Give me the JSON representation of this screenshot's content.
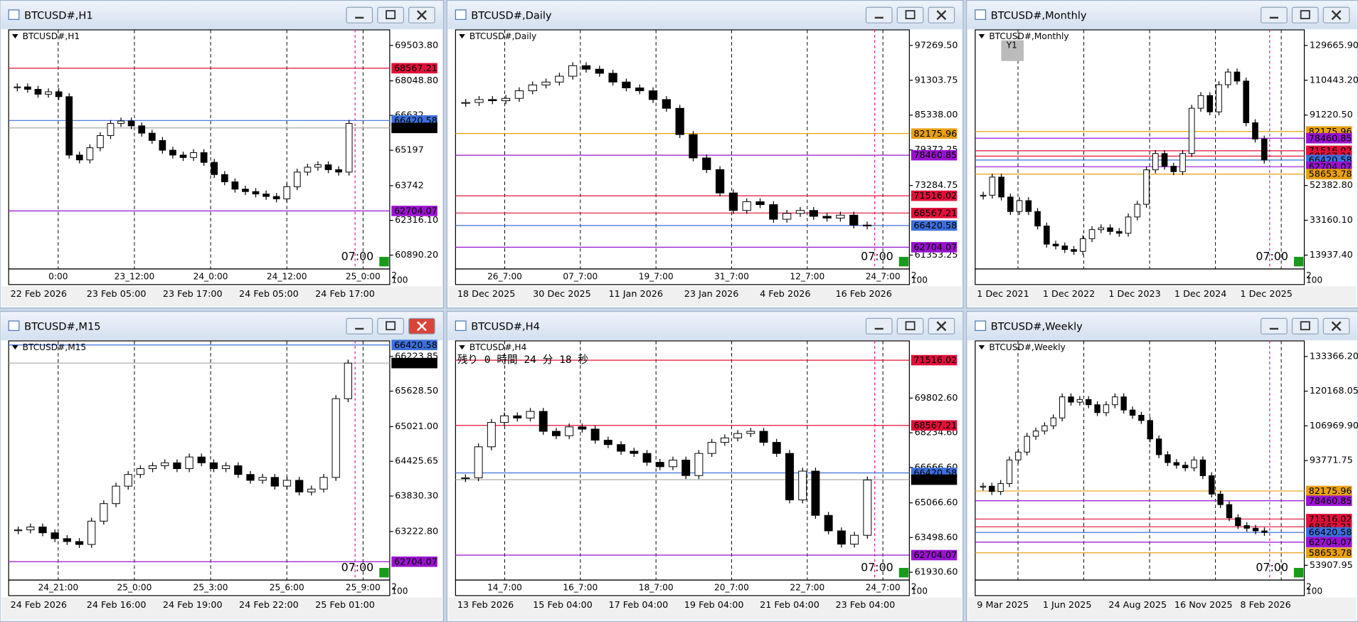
{
  "windows": [
    {
      "title": "BTCUSD#,H1",
      "label": "BTCUSD#,H1",
      "ylim": [
        60320,
        70145
      ],
      "price_ticks": [
        {
          "value": 69503.8,
          "label": "69503.80"
        },
        {
          "value": 68048.8,
          "label": "68048.80"
        },
        66632,
        65197,
        63742,
        {
          "value": 62316.1,
          "label": "62316.10"
        },
        {
          "value": 60890.2,
          "label": "60890.20"
        }
      ],
      "levels": [
        {
          "value": 68567.21,
          "color": "#e0103a"
        },
        {
          "value": 66420.58,
          "color": "#3d6fdc"
        },
        {
          "value": 66114.1,
          "label": "66114.10",
          "color": "#000000"
        },
        {
          "value": 62704.07,
          "color": "#9a12d0"
        }
      ],
      "closes": [
        67800,
        67700,
        67500,
        67600,
        67400,
        65000,
        64800,
        65300,
        65800,
        66300,
        66400,
        66200,
        65900,
        65600,
        65200,
        65000,
        64900,
        65100,
        64700,
        64200,
        63900,
        63600,
        63500,
        63400,
        63300,
        63200,
        63700,
        64300,
        64500,
        64600,
        64400,
        64300,
        66300
      ],
      "time_labels": [
        "0:00",
        "23_12:00",
        "24_0:00",
        "24_12:00",
        "25_0:00"
      ],
      "date_labels": [
        "22 Feb 2026",
        "23 Feb 05:00",
        "23 Feb 17:00",
        "24 Feb 05:00",
        "24 Feb 17:00"
      ],
      "session_label": "07:00",
      "scale_labels": [
        "2",
        "100"
      ]
    },
    {
      "title": "BTCUSD#,Daily",
      "label": "BTCUSD#,Daily",
      "ylim": [
        58979,
        99941
      ],
      "price_ticks": [
        {
          "value": 97269.5,
          "label": "97269.50"
        },
        91303.75,
        {
          "value": 85338,
          "label": "85338.00"
        },
        79372.25,
        73284.75,
        61353.25
      ],
      "levels": [
        {
          "value": 82175.96,
          "color": "#e8a010"
        },
        {
          "value": 78460.85,
          "color": "#9a12d0"
        },
        {
          "value": 71516.02,
          "color": "#e0103a"
        },
        {
          "value": 68567.21,
          "color": "#e0103a"
        },
        {
          "value": 66420.58,
          "color": "#3d6fdc"
        },
        {
          "value": 62704.07,
          "color": "#9a12d0"
        }
      ],
      "closes": [
        87500,
        88000,
        87800,
        88200,
        89500,
        90500,
        91000,
        92000,
        93800,
        93200,
        92500,
        91000,
        90000,
        89500,
        88000,
        86500,
        82000,
        78000,
        76000,
        72000,
        69000,
        70500,
        70000,
        67500,
        68500,
        69000,
        68000,
        67700,
        68200,
        66500,
        66400
      ],
      "time_labels": [
        "26_7:00",
        "07_7:00",
        "19_7:00",
        "31_7:00",
        "12_7:00",
        "24_7:00"
      ],
      "date_labels": [
        "18 Dec 2025",
        "30 Dec 2025",
        "11 Jan 2026",
        "23 Jan 2026",
        "4 Feb 2026",
        "16 Feb 2026"
      ],
      "session_label": "07:00",
      "scale_labels": [
        "2",
        "100"
      ]
    },
    {
      "title": "BTCUSD#,Monthly",
      "label": "BTCUSD#,Monthly",
      "badge": "Y1",
      "ylim": [
        6289,
        138273
      ],
      "price_ticks": [
        {
          "value": 129665.9,
          "label": "129665.90"
        },
        {
          "value": 110443.2,
          "label": "110443.20"
        },
        {
          "value": 91220.5,
          "label": "91220.50"
        },
        {
          "value": 52382.8,
          "label": "52382.80"
        },
        {
          "value": 33160.1,
          "label": "33160.10"
        },
        {
          "value": 13937.4,
          "label": "13937.40"
        }
      ],
      "levels": [
        {
          "value": 82175.96,
          "color": "#e8a010"
        },
        {
          "value": 78460.85,
          "color": "#9a12d0"
        },
        {
          "value": 71516.02,
          "color": "#e0103a"
        },
        {
          "value": 68567.21,
          "color": "#e0103a"
        },
        {
          "value": 66420.58,
          "color": "#3d6fdc"
        },
        {
          "value": 62704.07,
          "color": "#9a12d0"
        },
        {
          "value": 58653.78,
          "color": "#e8a010"
        }
      ],
      "closes": [
        47000,
        57000,
        46000,
        38000,
        44000,
        38000,
        30000,
        20000,
        19000,
        17000,
        16000,
        23000,
        28000,
        29000,
        27000,
        26000,
        35000,
        42000,
        61000,
        70000,
        63000,
        60000,
        70000,
        95000,
        102000,
        93000,
        108000,
        115000,
        110000,
        87000,
        78000,
        66400
      ],
      "time_labels": [],
      "date_labels": [
        "1 Dec 2021",
        "1 Dec 2022",
        "1 Dec 2023",
        "1 Dec 2024",
        "1 Dec 2025"
      ],
      "session_label": "07:00",
      "scale_labels": [
        "2",
        "100"
      ]
    },
    {
      "title": "BTCUSD#,M15",
      "label": "BTCUSD#,M15",
      "ylim": [
        62390,
        66491
      ],
      "price_ticks": [
        66223.85,
        {
          "value": 65628.5,
          "label": "65628.50"
        },
        {
          "value": 65021,
          "label": "65021.00"
        },
        64425.65,
        {
          "value": 63830.3,
          "label": "63830.30"
        },
        {
          "value": 63222.8,
          "label": "63222.80"
        }
      ],
      "levels": [
        {
          "value": 66420.58,
          "color": "#3d6fdc"
        },
        {
          "value": 66110.5,
          "label": "66110.50",
          "color": "#000000"
        },
        {
          "value": 62704.07,
          "color": "#9a12d0"
        }
      ],
      "closes": [
        63250,
        63300,
        63200,
        63100,
        63050,
        63000,
        63400,
        63700,
        64000,
        64200,
        64300,
        64350,
        64400,
        64300,
        64500,
        64400,
        64300,
        64350,
        64200,
        64100,
        64150,
        64000,
        64100,
        63900,
        63950,
        64150,
        65500,
        66110
      ],
      "time_labels": [
        "24_21:00",
        "25_0:00",
        "25_3:00",
        "25_6:00",
        "25_9:00"
      ],
      "date_labels": [
        "24 Feb 2026",
        "24 Feb 16:00",
        "24 Feb 19:00",
        "24 Feb 22:00",
        "25 Feb 01:00"
      ],
      "session_label": "07:00",
      "scale_labels": [
        "2",
        "100"
      ]
    },
    {
      "title": "BTCUSD#,H4",
      "label": "BTCUSD#,H4",
      "countdown": "残り 0 時間 24 分 18 秒",
      "ylim": [
        61578,
        72387
      ],
      "price_ticks": [
        {
          "value": 69802.6,
          "label": "69802.60"
        },
        {
          "value": 68234.6,
          "label": "68234.60"
        },
        {
          "value": 66666.6,
          "label": "66666.60"
        },
        {
          "value": 65066.6,
          "label": "65066.60"
        },
        {
          "value": 63498.6,
          "label": "63498.60"
        },
        {
          "value": 61930.6,
          "label": "61930.60"
        }
      ],
      "levels": [
        {
          "value": 71516.02,
          "color": "#e0103a"
        },
        {
          "value": 68567.21,
          "color": "#e0103a"
        },
        {
          "value": 66420.58,
          "color": "#3d6fdc"
        },
        {
          "value": 66114.1,
          "label": "66114.10",
          "color": "#000000"
        },
        {
          "value": 62704.07,
          "color": "#9a12d0"
        }
      ],
      "closes": [
        66200,
        67600,
        68700,
        69000,
        68900,
        69200,
        68300,
        68100,
        68500,
        68400,
        67900,
        67700,
        67400,
        67300,
        66900,
        66700,
        67000,
        66300,
        67300,
        67800,
        68000,
        68200,
        68300,
        67800,
        67300,
        65200,
        66500,
        64500,
        63800,
        63200,
        63600,
        66100
      ],
      "time_labels": [
        "14_7:00",
        "16_7:00",
        "18_7:00",
        "20_7:00",
        "22_7:00",
        "24_7:00"
      ],
      "date_labels": [
        "13 Feb 2026",
        "15 Feb 04:00",
        "17 Feb 04:00",
        "19 Feb 04:00",
        "21 Feb 04:00",
        "23 Feb 04:00"
      ],
      "session_label": "07:00",
      "scale_labels": [
        "2",
        "100"
      ]
    },
    {
      "title": "BTCUSD#,Weekly",
      "label": "BTCUSD#,Weekly",
      "ylim": [
        48298,
        139306
      ],
      "price_ticks": [
        {
          "value": 133366.2,
          "label": "133366.20"
        },
        120168.05,
        {
          "value": 106969.9,
          "label": "106969.90"
        },
        93771.75,
        53907.95
      ],
      "levels": [
        {
          "value": 82175.96,
          "color": "#e8a010"
        },
        {
          "value": 78460.85,
          "color": "#9a12d0"
        },
        {
          "value": 71516.02,
          "color": "#e0103a"
        },
        {
          "value": 68567.21,
          "color": "#e0103a"
        },
        {
          "value": 66420.58,
          "color": "#3d6fdc"
        },
        {
          "value": 62704.07,
          "color": "#9a12d0"
        },
        {
          "value": 58653.78,
          "color": "#e8a010"
        }
      ],
      "closes": [
        84000,
        82000,
        85000,
        94000,
        97000,
        103000,
        105000,
        107000,
        110000,
        118000,
        116000,
        117000,
        115000,
        112000,
        115000,
        118000,
        113000,
        111000,
        109000,
        102000,
        96000,
        93000,
        92000,
        91000,
        94000,
        88000,
        81000,
        77000,
        72000,
        69000,
        68000,
        67000,
        66400
      ],
      "time_labels": [],
      "date_labels": [
        "9 Mar 2025",
        "1 Jun 2025",
        "24 Aug 2025",
        "16 Nov 2025",
        "8 Feb 2026"
      ],
      "session_label": "07:00",
      "scale_labels": [
        "2",
        "100"
      ]
    }
  ]
}
